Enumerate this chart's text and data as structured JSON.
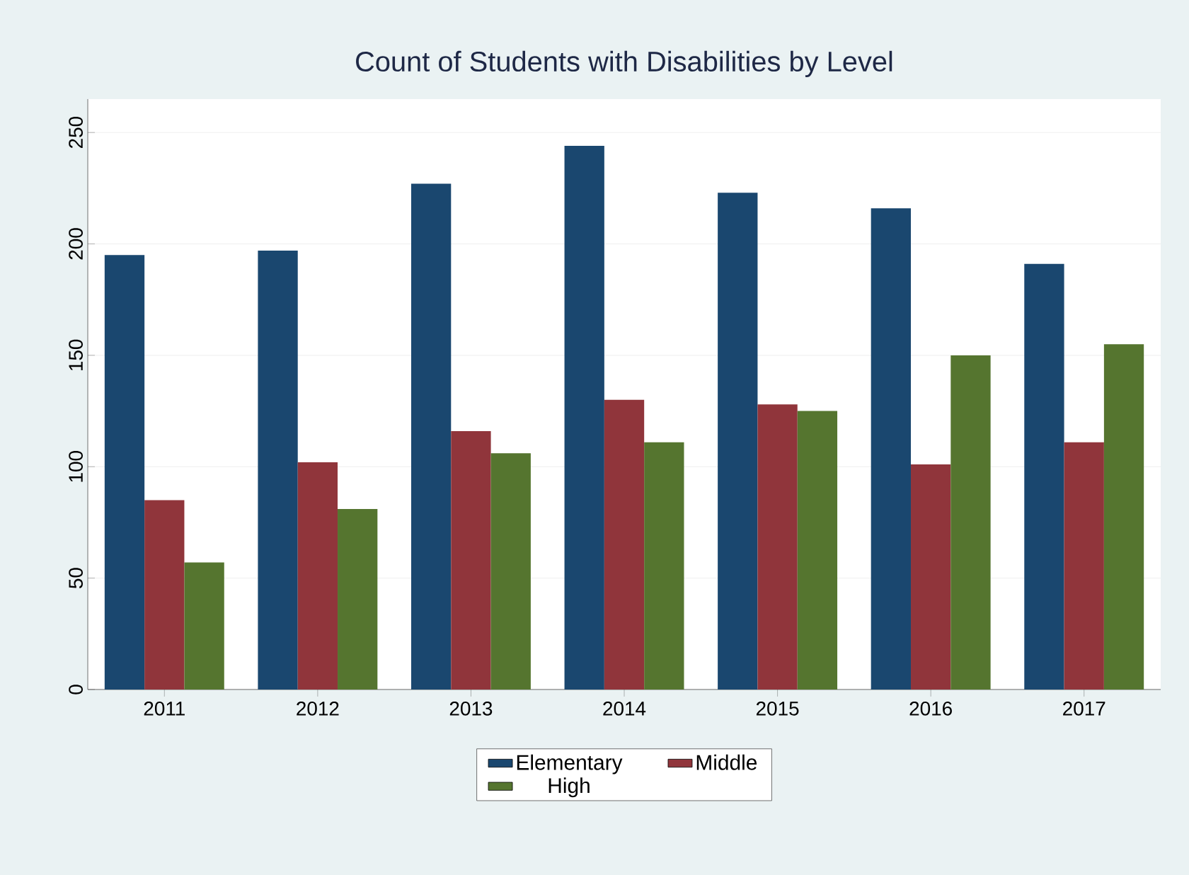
{
  "chart_data": {
    "type": "bar",
    "title": "Count of Students with Disabilities by Level",
    "categories": [
      "2011",
      "2012",
      "2013",
      "2014",
      "2015",
      "2016",
      "2017"
    ],
    "series": [
      {
        "name": "Elementary",
        "color": "#1a476f",
        "values": [
          195,
          197,
          227,
          244,
          223,
          216,
          191
        ]
      },
      {
        "name": "Middle",
        "color": "#90353b",
        "values": [
          85,
          102,
          116,
          130,
          128,
          101,
          111
        ]
      },
      {
        "name": "High",
        "color": "#55752f",
        "values": [
          57,
          81,
          106,
          111,
          125,
          150,
          155
        ]
      }
    ],
    "ylim": [
      0,
      265
    ],
    "yticks": [
      0,
      50,
      100,
      150,
      200,
      250
    ],
    "grid": "y",
    "legend": "bottom"
  }
}
